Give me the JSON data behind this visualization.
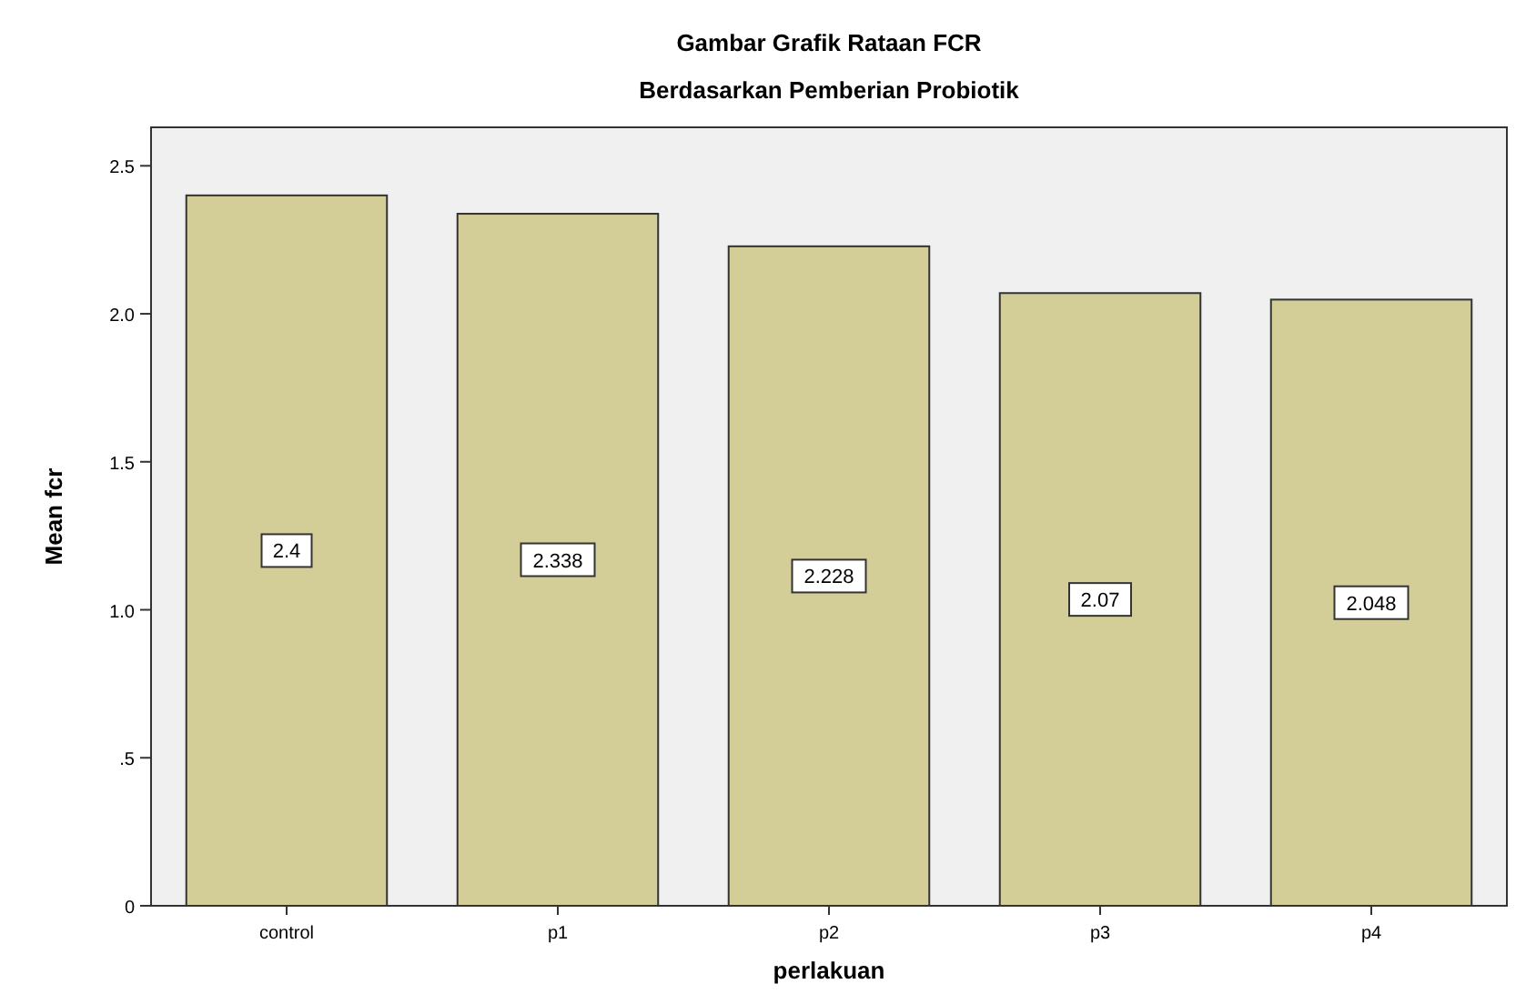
{
  "chart_data": {
    "type": "bar",
    "title": "Gambar Grafik Rataan FCR",
    "subtitle": "Berdasarkan Pemberian Probiotik",
    "xlabel": "perlakuan",
    "ylabel": "Mean fcr",
    "categories": [
      "control",
      "p1",
      "p2",
      "p3",
      "p4"
    ],
    "values": [
      2.4,
      2.338,
      2.228,
      2.07,
      2.048
    ],
    "color": "#d3ce98",
    "data_labels": true,
    "ylim": [
      0,
      2.63
    ],
    "yticks": [
      0,
      {
        "value": 0.5,
        "label": ".5"
      },
      {
        "value": 1,
        "label": "1.0"
      },
      {
        "value": 1.5,
        "label": "1.5"
      },
      {
        "value": 2,
        "label": "2.0"
      },
      {
        "value": 2.5,
        "label": "2.5"
      }
    ],
    "grid": false
  }
}
